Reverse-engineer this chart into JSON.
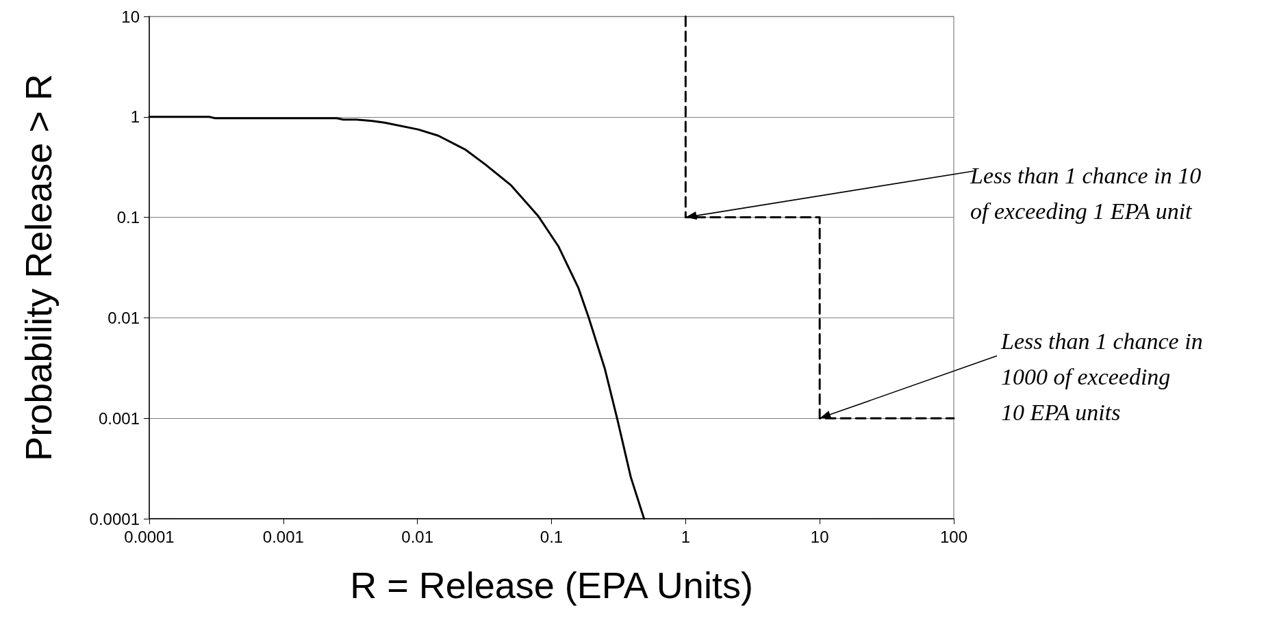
{
  "chart_data": {
    "type": "line",
    "xlabel": "R = Release (EPA Units)",
    "ylabel": "Probability Release > R",
    "xlim": [
      0.0001,
      100
    ],
    "xticks": [
      0.0001,
      0.001,
      0.01,
      0.1,
      1,
      10,
      100
    ],
    "ylim": [
      0.0001,
      10
    ],
    "yticks": [
      0.0001,
      0.001,
      0.01,
      0.1,
      1,
      10
    ],
    "log": "xy",
    "grid": "y",
    "marker": "none",
    "series": [
      {
        "color": "#000000",
        "line_style": "solid",
        "x": [
          0.0001,
          0.00028,
          0.00031,
          0.0025,
          0.0028,
          0.0035,
          0.0046,
          0.0057,
          0.0101,
          0.0143,
          0.0229,
          0.0321,
          0.05,
          0.08,
          0.113,
          0.159,
          0.19,
          0.25,
          0.31,
          0.39,
          0.49
        ],
        "values": [
          1,
          1,
          0.97,
          0.97,
          0.94,
          0.94,
          0.91,
          0.875,
          0.75,
          0.65,
          0.47,
          0.336,
          0.208,
          0.102,
          0.051,
          0.0197,
          0.0099,
          0.0031,
          0.00097,
          0.00026,
          0.0001
        ]
      },
      {
        "color": "#000000",
        "line_style": "dashed",
        "x": [
          1,
          1,
          10,
          10,
          100
        ],
        "values": [
          10,
          0.1,
          0.1,
          0.001,
          0.001
        ]
      }
    ],
    "annotations": [
      "Less than 1 chance in 10\nof exceeding 1 EPA unit",
      "Less than 1 chance in\n1000 of exceeding\n10 EPA units"
    ]
  }
}
